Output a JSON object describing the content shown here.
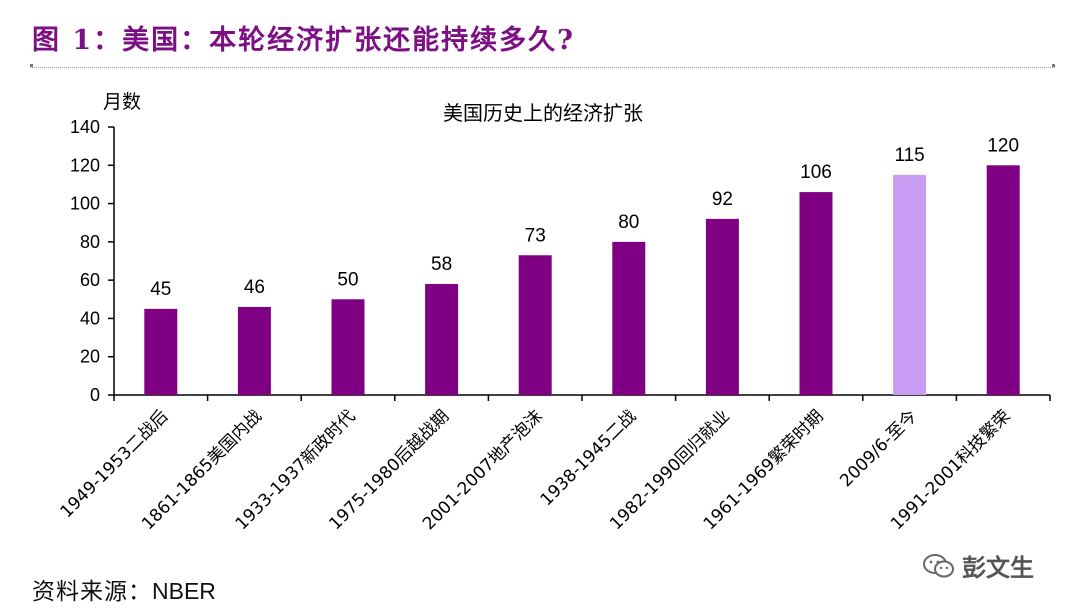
{
  "figure": {
    "title": "图 1：美国：本轮经济扩张还能持续多久?",
    "source_label": "资料来源：",
    "source_value": "NBER",
    "watermark": "彭文生"
  },
  "colors": {
    "title": "#7b0f83",
    "bar": "#7f0083",
    "bar_highlight": "#c89cf3",
    "axis": "#000000"
  },
  "chart_data": {
    "type": "bar",
    "title": "美国历史上的经济扩张",
    "ylabel": "月数",
    "ylim": [
      0,
      140
    ],
    "yticks": [
      0,
      20,
      40,
      60,
      80,
      100,
      120,
      140
    ],
    "categories": [
      "1949-1953二战后",
      "1861-1865美国内战",
      "1933-1937新政时代",
      "1975-1980后越战期",
      "2001-2007地产泡沫",
      "1938-1945二战",
      "1982-1990回归就业",
      "1961-1969繁荣时期",
      "2009/6-至今",
      "1991-2001科技繁荣"
    ],
    "values": [
      45,
      46,
      50,
      58,
      73,
      80,
      92,
      106,
      115,
      120
    ],
    "highlight_index": 8,
    "data_labels": true,
    "grid": false,
    "legend": "none"
  }
}
